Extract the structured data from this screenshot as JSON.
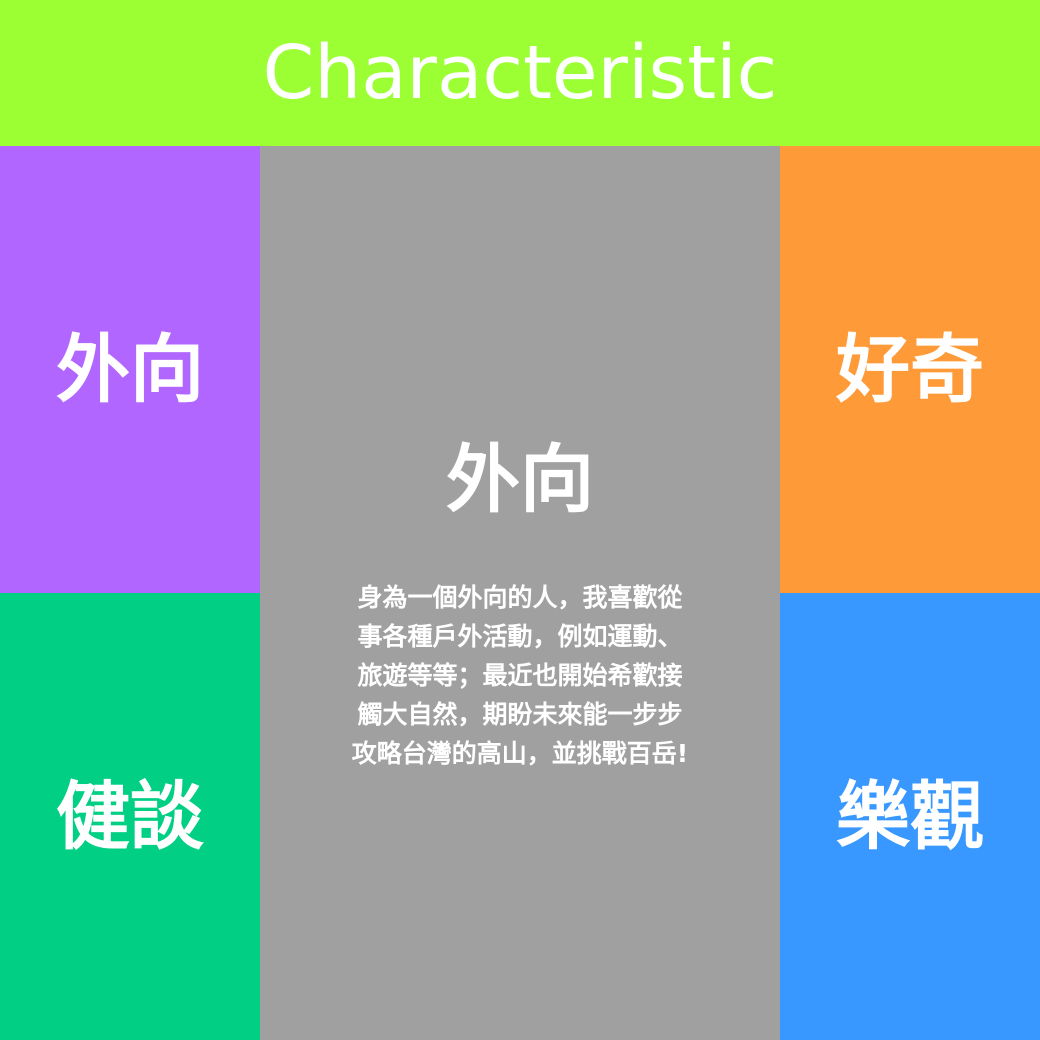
{
  "colors": {
    "header_bg": "#9bff33",
    "left_top_bg": "#b066ff",
    "left_bottom_bg": "#00cf84",
    "right_top_bg": "#ff9a38",
    "right_bottom_bg": "#3898ff",
    "center_bg": "#a0a0a0",
    "text": "#ffffff"
  },
  "header": {
    "title": "Characteristic"
  },
  "tiles": {
    "left_top": "外向",
    "left_bottom": "健談",
    "right_top": "好奇",
    "right_bottom": "樂觀"
  },
  "center": {
    "heading": "外向",
    "body": "身為一個外向的人，我喜歡從\n事各種戶外活動，例如運動、\n旅遊等等；最近也開始希歡接\n觸大自然，期盼未來能一步步\n攻略台灣的高山，並挑戰百岳!"
  }
}
